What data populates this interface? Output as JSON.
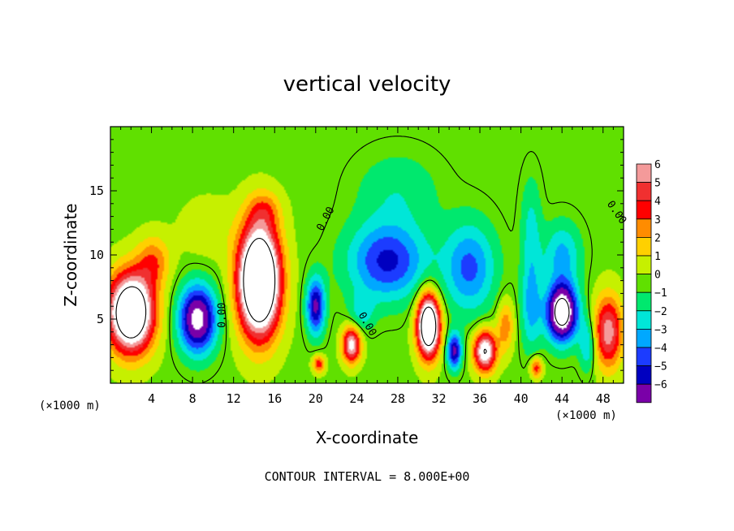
{
  "chart_data": {
    "type": "heatmap",
    "title": "vertical velocity",
    "xlabel": "X-coordinate",
    "ylabel": "Z-coordinate",
    "x_unit": "(×1000 m)",
    "xlim": [
      0,
      50
    ],
    "ylim": [
      0,
      20
    ],
    "x_ticks": [
      4,
      8,
      12,
      16,
      20,
      24,
      28,
      32,
      36,
      40,
      44,
      48
    ],
    "y_ticks": [
      5,
      10,
      15
    ],
    "colorbar": {
      "levels": [
        6,
        5,
        4,
        3,
        2,
        1,
        0,
        -1,
        -2,
        -3,
        -4,
        -5,
        -6
      ],
      "labels": [
        "6",
        "5",
        "4",
        "3",
        "2",
        "1",
        "0",
        "−1",
        "−2",
        "−3",
        "−4",
        "−5",
        "−6"
      ],
      "colors": [
        "#f49a9a",
        "#f03030",
        "#ff0000",
        "#ff8c00",
        "#ffd000",
        "#c6f000",
        "#60e000",
        "#00e86e",
        "#00e6d8",
        "#00a8ff",
        "#1c3cff",
        "#0000c0",
        "#7a00a8"
      ]
    },
    "background_value": 0.2,
    "cells": [
      {
        "x": 2.0,
        "z": 5.5,
        "sx": 2.2,
        "sz": 3.0,
        "w": 12
      },
      {
        "x": 4.2,
        "z": 9.5,
        "sx": 1.6,
        "sz": 2.0,
        "w": 3
      },
      {
        "x": 8.5,
        "z": 5.0,
        "sx": 1.8,
        "sz": 2.6,
        "w": -8
      },
      {
        "x": 14.5,
        "z": 8.0,
        "sx": 2.0,
        "sz": 4.2,
        "w": 14
      },
      {
        "x": 15.0,
        "z": 13.5,
        "sx": 1.6,
        "sz": 1.5,
        "w": 2
      },
      {
        "x": 9.5,
        "z": 12.0,
        "sx": 2.8,
        "sz": 2.5,
        "w": 1
      },
      {
        "x": 20.0,
        "z": 6.0,
        "sx": 0.9,
        "sz": 2.2,
        "w": -6
      },
      {
        "x": 20.3,
        "z": 1.5,
        "sx": 0.6,
        "sz": 0.7,
        "w": 4
      },
      {
        "x": 23.5,
        "z": 3.0,
        "sx": 0.9,
        "sz": 1.4,
        "w": 7
      },
      {
        "x": 24.5,
        "z": 5.5,
        "sx": 1.2,
        "sz": 1.5,
        "w": -2
      },
      {
        "x": 27.0,
        "z": 9.5,
        "sx": 3.8,
        "sz": 3.0,
        "w": -5
      },
      {
        "x": 28.0,
        "z": 15.0,
        "sx": 4.0,
        "sz": 3.0,
        "w": -1.5
      },
      {
        "x": 31.0,
        "z": 4.5,
        "sx": 1.1,
        "sz": 2.4,
        "w": 12
      },
      {
        "x": 33.5,
        "z": 2.5,
        "sx": 0.7,
        "sz": 1.4,
        "w": -6
      },
      {
        "x": 35.0,
        "z": 9.0,
        "sx": 2.5,
        "sz": 3.5,
        "w": -4
      },
      {
        "x": 36.5,
        "z": 2.5,
        "sx": 1.1,
        "sz": 1.6,
        "w": 8
      },
      {
        "x": 38.5,
        "z": 4.5,
        "sx": 0.8,
        "sz": 2.0,
        "w": 3
      },
      {
        "x": 41.0,
        "z": 6.0,
        "sx": 1.0,
        "sz": 3.5,
        "w": -3
      },
      {
        "x": 41.5,
        "z": 1.2,
        "sx": 0.6,
        "sz": 0.8,
        "w": 4
      },
      {
        "x": 44.0,
        "z": 5.5,
        "sx": 1.5,
        "sz": 2.2,
        "w": -10
      },
      {
        "x": 44.0,
        "z": 10.0,
        "sx": 1.8,
        "sz": 2.5,
        "w": -3
      },
      {
        "x": 41.0,
        "z": 12.0,
        "sx": 1.0,
        "sz": 4.0,
        "w": -2
      },
      {
        "x": 48.5,
        "z": 4.0,
        "sx": 1.4,
        "sz": 2.8,
        "w": 6
      },
      {
        "x": 46.5,
        "z": 3.0,
        "sx": 0.8,
        "sz": 2.0,
        "w": -3
      }
    ],
    "contour_labels": [
      {
        "text": "0.00",
        "x": 10.9,
        "z": 5.3,
        "angle": -90
      },
      {
        "text": "0.00",
        "x": 21.0,
        "z": 12.8,
        "angle": -62
      },
      {
        "text": "0.00",
        "x": 25.0,
        "z": 4.6,
        "angle": 60
      },
      {
        "text": "0.00",
        "x": 49.3,
        "z": 13.3,
        "angle": 55
      }
    ],
    "note": "CONTOUR INTERVAL = 8.000E+00"
  }
}
